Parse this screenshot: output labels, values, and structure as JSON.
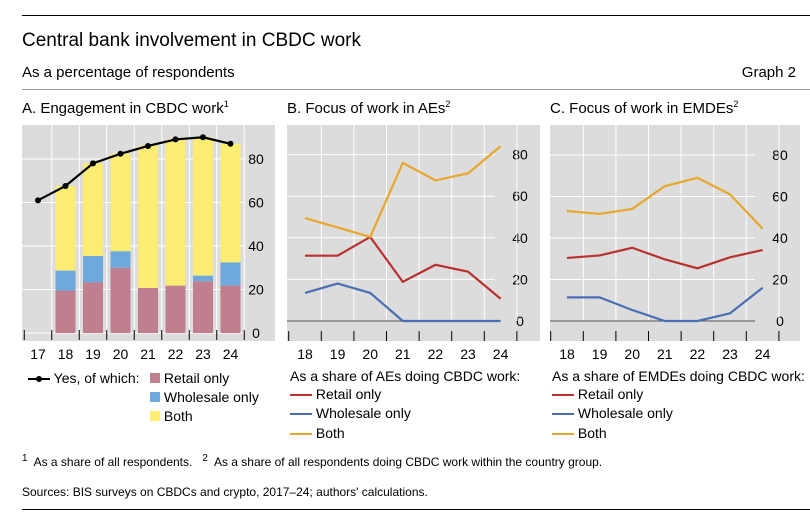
{
  "title": "Central bank involvement in CBDC work",
  "subtitle": "As a percentage of respondents",
  "graph_label": "Graph 2",
  "footnote1_mark": "1",
  "footnote1": "As a share of all respondents.",
  "footnote2_mark": "2",
  "footnote2": "As a share of all respondents doing CBDC work within the country group.",
  "sources": "Sources: BIS surveys on CBDCs and crypto, 2017–24; authors' calculations.",
  "colors": {
    "retail_bar": "#c07f8e",
    "wholesale_bar": "#6fa8dc",
    "both_bar": "#fbec74",
    "yes_line": "#000000",
    "retail_line": "#b8312f",
    "wholesale_line": "#4a6fb5",
    "both_line": "#e8a62a",
    "plot_bg": "#dcdcdc"
  },
  "chart_data": [
    {
      "type": "bar",
      "title": "A. Engagement in CBDC work",
      "title_sup": "1",
      "stacked": true,
      "categories": [
        "17",
        "18",
        "19",
        "20",
        "21",
        "22",
        "23",
        "24"
      ],
      "yticks": [
        "0",
        "20",
        "40",
        "60",
        "80"
      ],
      "ylim": [
        0,
        95
      ],
      "grid": true,
      "series": [
        {
          "name": "Retail only",
          "values": [
            null,
            19.5,
            23.3,
            30,
            20.7,
            21.8,
            23.8,
            21.8
          ]
        },
        {
          "name": "Wholesale only",
          "values": [
            null,
            9.2,
            12.1,
            7.6,
            0,
            0,
            2.6,
            10.7
          ]
        },
        {
          "name": "Both",
          "values": [
            null,
            38.9,
            42.6,
            44.8,
            65.3,
            67.2,
            63.6,
            54.5
          ]
        }
      ],
      "line": {
        "name": "Yes, of which:",
        "values": [
          61,
          67.6,
          78,
          82.4,
          86,
          89,
          90,
          87
        ]
      }
    },
    {
      "type": "line",
      "title": "B. Focus of work in AEs",
      "title_sup": "2",
      "categories": [
        "18",
        "19",
        "20",
        "21",
        "22",
        "23",
        "24"
      ],
      "yticks": [
        "0",
        "20",
        "40",
        "60",
        "80"
      ],
      "ylim": [
        0,
        95
      ],
      "grid": true,
      "legend_title": "As a share of AEs doing CBDC work:",
      "series": [
        {
          "name": "Retail only",
          "values": [
            31.4,
            31.4,
            40.4,
            18.8,
            27,
            23.7,
            10.7
          ]
        },
        {
          "name": "Wholesale only",
          "values": [
            13.5,
            18,
            13.5,
            0,
            0,
            0,
            0
          ]
        },
        {
          "name": "Both",
          "values": [
            49.5,
            45,
            40.4,
            76,
            67.6,
            71,
            84
          ]
        }
      ]
    },
    {
      "type": "line",
      "title": "C. Focus of work in EMDEs",
      "title_sup": "2",
      "categories": [
        "18",
        "19",
        "20",
        "21",
        "22",
        "23",
        "24"
      ],
      "yticks": [
        "0",
        "20",
        "40",
        "60",
        "80"
      ],
      "ylim": [
        0,
        95
      ],
      "grid": true,
      "legend_title": "As a share of EMDEs doing CBDC work:",
      "series": [
        {
          "name": "Retail only",
          "values": [
            30.4,
            31.6,
            35.3,
            29.7,
            25.4,
            30.7,
            34.2
          ]
        },
        {
          "name": "Wholesale only",
          "values": [
            11.4,
            11.4,
            5.3,
            0,
            0,
            3.7,
            16
          ]
        },
        {
          "name": "Both",
          "values": [
            53,
            51.6,
            54,
            65,
            69,
            61,
            44.5
          ]
        }
      ]
    }
  ]
}
